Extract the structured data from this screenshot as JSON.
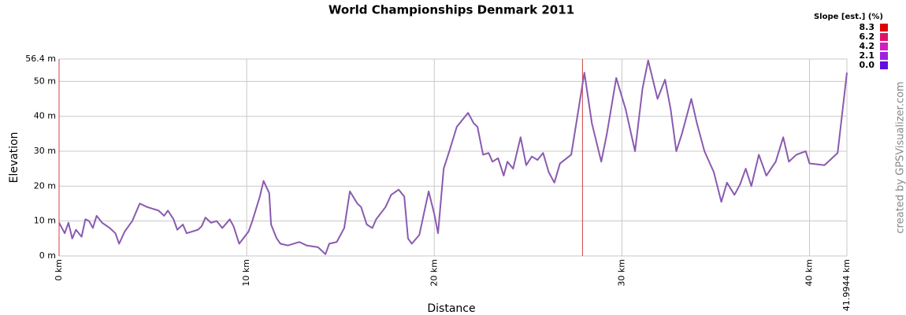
{
  "chart_data": {
    "type": "line",
    "title": "World Championships Denmark 2011",
    "x_label": "Distance",
    "y_label": "Elevation",
    "credit": "created by GPSVisualizer.com",
    "legend": {
      "title": "Slope [est.] (%)",
      "position": "upper right",
      "entries": [
        {
          "value": 8.3,
          "color": "#e00000"
        },
        {
          "value": 6.2,
          "color": "#e0106a"
        },
        {
          "value": 4.2,
          "color": "#d020c0"
        },
        {
          "value": 2.1,
          "color": "#a020e0"
        },
        {
          "value": 0.0,
          "label": "0.0",
          "color": "#6010e0"
        }
      ]
    },
    "x": [
      0,
      0.3,
      0.5,
      0.7,
      0.9,
      1.2,
      1.4,
      1.6,
      1.8,
      2.0,
      2.3,
      2.7,
      3.0,
      3.2,
      3.5,
      3.9,
      4.3,
      4.7,
      5.3,
      5.6,
      5.8,
      6.1,
      6.3,
      6.6,
      6.8,
      7.4,
      7.6,
      7.8,
      8.1,
      8.4,
      8.7,
      9.1,
      9.3,
      9.6,
      10.1,
      10.3,
      10.7,
      10.9,
      11.2,
      11.3,
      11.6,
      11.8,
      12.2,
      12.8,
      13.2,
      13.8,
      14.2,
      14.4,
      14.8,
      15.2,
      15.5,
      15.9,
      16.1,
      16.4,
      16.7,
      16.9,
      17.4,
      17.7,
      18.1,
      18.4,
      18.6,
      18.8,
      19.2,
      19.7,
      20.0,
      20.2,
      20.5,
      20.8,
      21.2,
      21.8,
      22.1,
      22.3,
      22.6,
      22.9,
      23.1,
      23.4,
      23.7,
      23.9,
      24.2,
      24.6,
      24.9,
      25.2,
      25.5,
      25.8,
      26.1,
      26.4,
      26.7,
      27.3,
      28.0,
      28.4,
      28.9,
      29.2,
      29.7,
      30.2,
      30.7,
      31.1,
      31.4,
      31.9,
      32.3,
      32.6,
      32.9,
      33.2,
      33.7,
      34.0,
      34.4,
      34.9,
      35.3,
      35.6,
      36.0,
      36.3,
      36.6,
      36.9,
      37.3,
      37.7,
      38.2,
      38.6,
      38.9,
      39.3,
      39.8,
      40.0,
      40.8,
      41.5,
      41.9944
    ],
    "series": [
      {
        "name": "Elevation",
        "color": "#8a5ab0",
        "values": [
          9.5,
          6.5,
          9.5,
          5,
          7.5,
          5.5,
          10.5,
          10,
          8,
          11.5,
          9.5,
          8,
          6.5,
          3.5,
          7,
          10,
          15,
          14,
          13,
          11.5,
          13,
          10.5,
          7.5,
          9,
          6.5,
          7.5,
          8.5,
          11,
          9.5,
          10,
          8,
          10.5,
          8.5,
          3.5,
          7,
          10,
          17,
          21.5,
          18,
          9,
          5,
          3.5,
          3,
          4,
          3,
          2.5,
          0.5,
          3.5,
          4,
          8,
          18.5,
          15,
          14,
          9,
          8,
          10.5,
          14,
          17.5,
          19,
          17,
          5,
          3.5,
          6,
          18.5,
          12,
          6.5,
          25,
          30,
          37,
          41,
          38,
          37,
          29,
          29.5,
          27,
          28,
          23,
          27,
          25,
          34,
          26,
          28.5,
          27.5,
          29.5,
          24,
          21,
          26.5,
          29,
          52.5,
          38,
          27,
          35,
          51,
          42,
          30,
          48,
          56,
          45,
          50.5,
          42,
          30,
          35,
          45,
          38,
          30,
          24,
          15.5,
          21,
          17.5,
          20.5,
          25,
          20,
          29,
          23,
          27,
          34,
          27,
          29,
          30,
          26.5,
          26,
          29.5,
          52.5
        ]
      }
    ],
    "markers_x": [
      0,
      27.9
    ],
    "xlim": [
      0,
      41.9944
    ],
    "xticks": [
      {
        "value": 0,
        "label": "0 km"
      },
      {
        "value": 10,
        "label": "10 km"
      },
      {
        "value": 20,
        "label": "20 km"
      },
      {
        "value": 30,
        "label": "30 km"
      },
      {
        "value": 40,
        "label": "40 km"
      },
      {
        "value": 41.9944,
        "label": "41.9944 km"
      }
    ],
    "ylim": [
      0,
      56.4
    ],
    "yticks": [
      {
        "value": 0,
        "label": "0 m"
      },
      {
        "value": 10,
        "label": "10 m"
      },
      {
        "value": 20,
        "label": "20 m"
      },
      {
        "value": 30,
        "label": "30 m"
      },
      {
        "value": 40,
        "label": "40 m"
      },
      {
        "value": 50,
        "label": "50 m"
      },
      {
        "value": 56.4,
        "label": "56.4 m"
      }
    ],
    "grid": true
  }
}
